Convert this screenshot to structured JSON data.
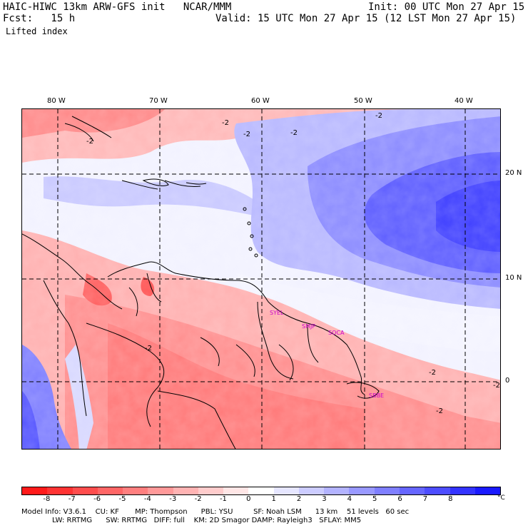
{
  "header": {
    "model_title": "HAIC-HIWC 13km ARW-GFS init   NCAR/MMM",
    "init": "Init: 00 UTC Mon 27 Apr 15",
    "fcst": "Fcst:   15 h",
    "valid": "Valid: 15 UTC Mon 27 Apr 15 (12 LST Mon 27 Apr 15)",
    "field": "Lifted index"
  },
  "map": {
    "lon_labels": [
      "80 W",
      "70 W",
      "60 W",
      "50 W",
      "40 W"
    ],
    "lat_labels": [
      "20 N",
      "10 N",
      "0"
    ],
    "stations": [
      "SYEL",
      "SMJP",
      "SOCA",
      "SBBE"
    ],
    "contour_labels": [
      "-2",
      "-2",
      "-2",
      "-2",
      "-2",
      "-2",
      "-2",
      "-2",
      "-2"
    ]
  },
  "colorbar": {
    "ticks": [
      "-8",
      "-7",
      "-6",
      "-5",
      "-4",
      "-3",
      "-2",
      "-1",
      "0",
      "1",
      "2",
      "3",
      "4",
      "5",
      "6",
      "7",
      "8"
    ],
    "unit": "°C",
    "colors": [
      "#ff1a1a",
      "#ff3333",
      "#ff4d4d",
      "#ff6666",
      "#ff7f7f",
      "#ff9999",
      "#ffb3b3",
      "#ffcccc",
      "#ffe6e6",
      "#ffffff",
      "#e6e6ff",
      "#ccccff",
      "#b3b3ff",
      "#9999ff",
      "#7f7fff",
      "#6666ff",
      "#4d4dff",
      "#3333ff",
      "#1a1aff"
    ]
  },
  "footer": {
    "line1": "Model Info: V3.6.1    CU: KF       MP: Thompson      PBL: YSU         SF: Noah LSM      13 km    51 levels   60 sec",
    "line2": "LW: RRTMG      SW: RRTMG   DIFF: full    KM: 2D Smagor DAMP: Rayleigh3   SFLAY: MM5"
  }
}
